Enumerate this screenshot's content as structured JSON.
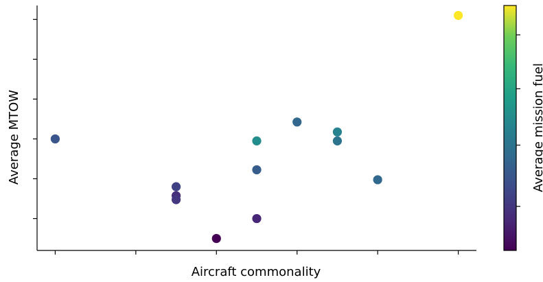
{
  "chart_data": {
    "type": "scatter",
    "title": "",
    "xlabel": "Aircraft commonality",
    "ylabel": "Average MTOW",
    "colorbar_label": "Average mission fuel",
    "xlim": [
      -0.45,
      10.45
    ],
    "ylim": [
      -0.6,
      11.7
    ],
    "clim": [
      0,
      1
    ],
    "colormap": "viridis",
    "grid": false,
    "points": [
      {
        "x": 0,
        "y": 5.0,
        "c": 0.3
      },
      {
        "x": 3,
        "y": 2.6,
        "c": 0.22
      },
      {
        "x": 3,
        "y": 2.15,
        "c": 0.15
      },
      {
        "x": 3,
        "y": 1.95,
        "c": 0.18
      },
      {
        "x": 4,
        "y": 0.0,
        "c": 0.0
      },
      {
        "x": 5,
        "y": 4.9,
        "c": 0.55
      },
      {
        "x": 5,
        "y": 3.45,
        "c": 0.33
      },
      {
        "x": 5,
        "y": 1.0,
        "c": 0.12
      },
      {
        "x": 6,
        "y": 5.85,
        "c": 0.37
      },
      {
        "x": 7,
        "y": 5.35,
        "c": 0.5
      },
      {
        "x": 7,
        "y": 4.9,
        "c": 0.43
      },
      {
        "x": 8,
        "y": 2.95,
        "c": 0.38
      },
      {
        "x": 10,
        "y": 11.2,
        "c": 1.0
      }
    ]
  }
}
